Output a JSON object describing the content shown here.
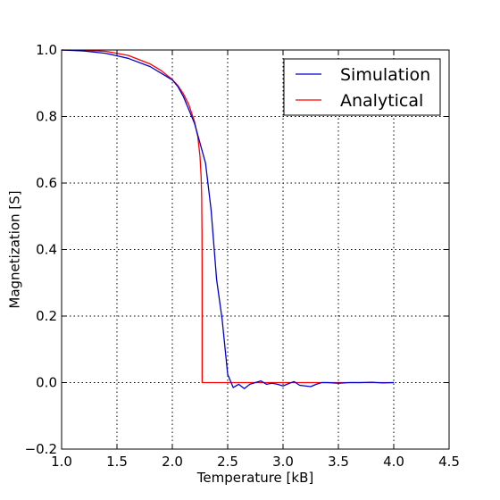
{
  "chart_data": {
    "type": "line",
    "title": "",
    "xlabel": "Temperature [kB]",
    "ylabel": "Magnetization [S]",
    "xlim": [
      1.0,
      4.5
    ],
    "ylim": [
      -0.2,
      1.0
    ],
    "xticks": [
      "1.0",
      "1.5",
      "2.0",
      "2.5",
      "3.0",
      "3.5",
      "4.0",
      "4.5"
    ],
    "yticks": [
      "1.0",
      "0.8",
      "0.6",
      "0.4",
      "0.2",
      "0.0",
      "−0.2"
    ],
    "grid": true,
    "legend_position": "top-right",
    "series": [
      {
        "name": "Simulation",
        "color": "#0000cc",
        "x": [
          1.0,
          1.2,
          1.4,
          1.6,
          1.8,
          1.9,
          2.0,
          2.05,
          2.1,
          2.15,
          2.2,
          2.25,
          2.3,
          2.35,
          2.4,
          2.45,
          2.5,
          2.55,
          2.6,
          2.65,
          2.7,
          2.75,
          2.8,
          2.85,
          2.9,
          2.95,
          3.0,
          3.05,
          3.1,
          3.15,
          3.2,
          3.25,
          3.3,
          3.35,
          3.4,
          3.5,
          3.6,
          3.7,
          3.8,
          3.9,
          4.0
        ],
        "y": [
          1.0,
          0.997,
          0.99,
          0.975,
          0.95,
          0.93,
          0.91,
          0.89,
          0.86,
          0.82,
          0.78,
          0.72,
          0.66,
          0.52,
          0.31,
          0.19,
          0.025,
          -0.015,
          -0.005,
          -0.018,
          -0.005,
          0.0,
          0.005,
          -0.005,
          -0.002,
          -0.005,
          -0.01,
          -0.003,
          0.003,
          -0.008,
          -0.01,
          -0.012,
          -0.005,
          0.0,
          0.0,
          -0.002,
          0.0,
          0.0,
          0.001,
          -0.001,
          0.0
        ]
      },
      {
        "name": "Analytical",
        "color": "#ff0000",
        "x": [
          1.0,
          1.2,
          1.4,
          1.6,
          1.8,
          1.9,
          2.0,
          2.05,
          2.1,
          2.15,
          2.2,
          2.23,
          2.25,
          2.26,
          2.265,
          2.268,
          2.269,
          2.269,
          4.0
        ],
        "y": [
          0.9998,
          0.9992,
          0.996,
          0.984,
          0.958,
          0.938,
          0.911,
          0.893,
          0.868,
          0.835,
          0.785,
          0.74,
          0.68,
          0.62,
          0.56,
          0.45,
          0.32,
          0.0,
          0.0
        ]
      }
    ]
  }
}
